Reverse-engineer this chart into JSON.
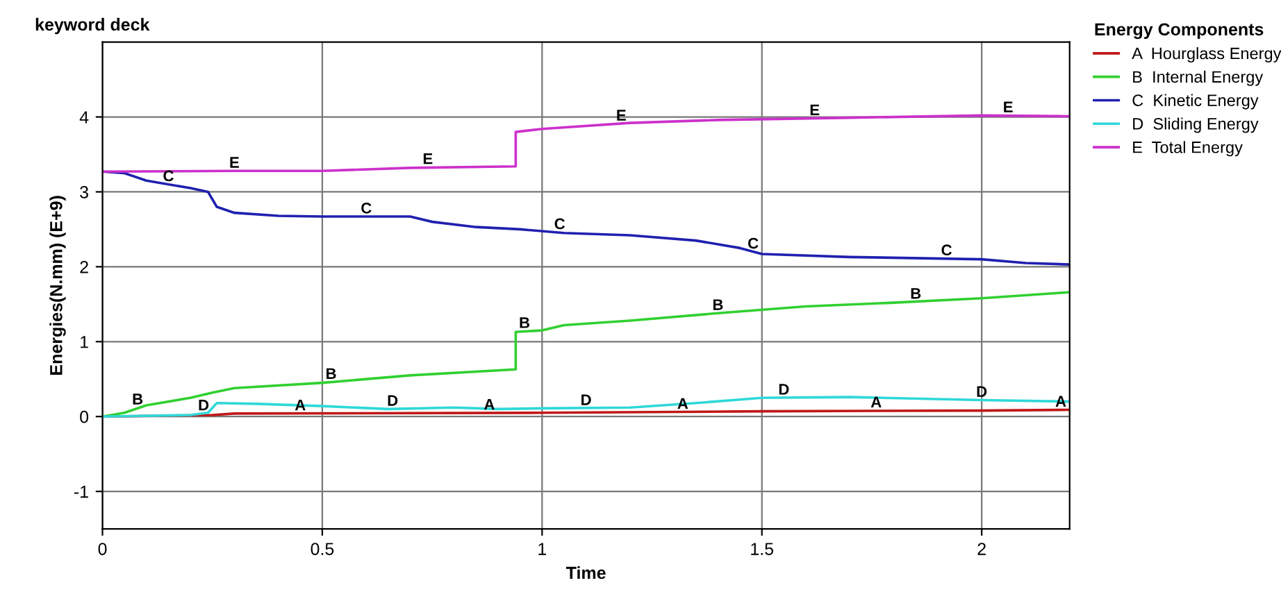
{
  "chart_data": {
    "type": "line",
    "title": "keyword deck",
    "xlabel": "Time",
    "ylabel": "Energies(N.mm) (E+9)",
    "legend_title": "Energy Components",
    "legend": "right",
    "grid": true,
    "xlim": [
      0,
      2.2
    ],
    "ylim": [
      -1.5,
      5
    ],
    "xticks": [
      0,
      0.5,
      1,
      1.5,
      2
    ],
    "yticks": [
      -1,
      0,
      1,
      2,
      3,
      4
    ],
    "series": [
      {
        "name": "A  Hourglass Energy",
        "color": "#c01818",
        "x": [
          0,
          0.25,
          0.3,
          1.0,
          1.5,
          2.0,
          2.2
        ],
        "values": [
          0,
          0.02,
          0.04,
          0.05,
          0.07,
          0.08,
          0.09
        ]
      },
      {
        "name": "B  Internal Energy",
        "color": "#30d030",
        "x": [
          0,
          0.05,
          0.1,
          0.2,
          0.25,
          0.3,
          0.5,
          0.7,
          0.94,
          0.94,
          1.0,
          1.05,
          1.2,
          1.4,
          1.6,
          1.8,
          2.0,
          2.2
        ],
        "values": [
          0,
          0.05,
          0.15,
          0.25,
          0.32,
          0.38,
          0.45,
          0.55,
          0.63,
          1.13,
          1.15,
          1.22,
          1.28,
          1.38,
          1.47,
          1.52,
          1.58,
          1.66
        ]
      },
      {
        "name": "C  Kinetic Energy",
        "color": "#2020b0",
        "x": [
          0,
          0.05,
          0.1,
          0.2,
          0.24,
          0.26,
          0.3,
          0.4,
          0.5,
          0.7,
          0.75,
          0.85,
          0.95,
          1.05,
          1.2,
          1.35,
          1.45,
          1.5,
          1.7,
          2.0,
          2.1,
          2.2
        ],
        "values": [
          3.27,
          3.25,
          3.15,
          3.05,
          3.0,
          2.8,
          2.72,
          2.68,
          2.67,
          2.67,
          2.6,
          2.53,
          2.5,
          2.45,
          2.42,
          2.35,
          2.25,
          2.17,
          2.13,
          2.1,
          2.05,
          2.03
        ]
      },
      {
        "name": "D  Sliding Energy",
        "color": "#30d8d8",
        "x": [
          0,
          0.2,
          0.24,
          0.26,
          0.35,
          0.5,
          0.65,
          0.8,
          0.9,
          1.0,
          1.2,
          1.35,
          1.5,
          1.7,
          2.0,
          2.2
        ],
        "values": [
          0,
          0.02,
          0.05,
          0.18,
          0.17,
          0.14,
          0.1,
          0.12,
          0.1,
          0.11,
          0.12,
          0.18,
          0.25,
          0.26,
          0.22,
          0.2
        ]
      },
      {
        "name": "E  Total Energy",
        "color": "#cc30cc",
        "x": [
          0,
          0.3,
          0.5,
          0.7,
          0.94,
          0.94,
          1.0,
          1.2,
          1.4,
          1.7,
          2.0,
          2.2
        ],
        "values": [
          3.27,
          3.28,
          3.28,
          3.32,
          3.34,
          3.8,
          3.84,
          3.92,
          3.96,
          3.99,
          4.02,
          4.01
        ]
      }
    ],
    "annotations": [
      {
        "text": "A",
        "x": 0.45,
        "y": 0.04
      },
      {
        "text": "A",
        "x": 0.88,
        "y": 0.05
      },
      {
        "text": "A",
        "x": 1.32,
        "y": 0.06
      },
      {
        "text": "A",
        "x": 1.76,
        "y": 0.08
      },
      {
        "text": "A",
        "x": 2.18,
        "y": 0.09
      },
      {
        "text": "B",
        "x": 0.08,
        "y": 0.12
      },
      {
        "text": "B",
        "x": 0.52,
        "y": 0.46
      },
      {
        "text": "B",
        "x": 0.96,
        "y": 1.14
      },
      {
        "text": "B",
        "x": 1.4,
        "y": 1.38
      },
      {
        "text": "B",
        "x": 1.85,
        "y": 1.53
      },
      {
        "text": "C",
        "x": 0.15,
        "y": 3.1
      },
      {
        "text": "C",
        "x": 0.6,
        "y": 2.67
      },
      {
        "text": "C",
        "x": 1.04,
        "y": 2.46
      },
      {
        "text": "C",
        "x": 1.48,
        "y": 2.2
      },
      {
        "text": "C",
        "x": 1.92,
        "y": 2.11
      },
      {
        "text": "D",
        "x": 0.23,
        "y": 0.04
      },
      {
        "text": "D",
        "x": 0.66,
        "y": 0.1
      },
      {
        "text": "D",
        "x": 1.1,
        "y": 0.11
      },
      {
        "text": "D",
        "x": 1.55,
        "y": 0.25
      },
      {
        "text": "D",
        "x": 2.0,
        "y": 0.22
      },
      {
        "text": "E",
        "x": 0.3,
        "y": 3.28
      },
      {
        "text": "E",
        "x": 0.74,
        "y": 3.33
      },
      {
        "text": "E",
        "x": 1.18,
        "y": 3.91
      },
      {
        "text": "E",
        "x": 1.62,
        "y": 3.98
      },
      {
        "text": "E",
        "x": 2.06,
        "y": 4.02
      }
    ]
  }
}
